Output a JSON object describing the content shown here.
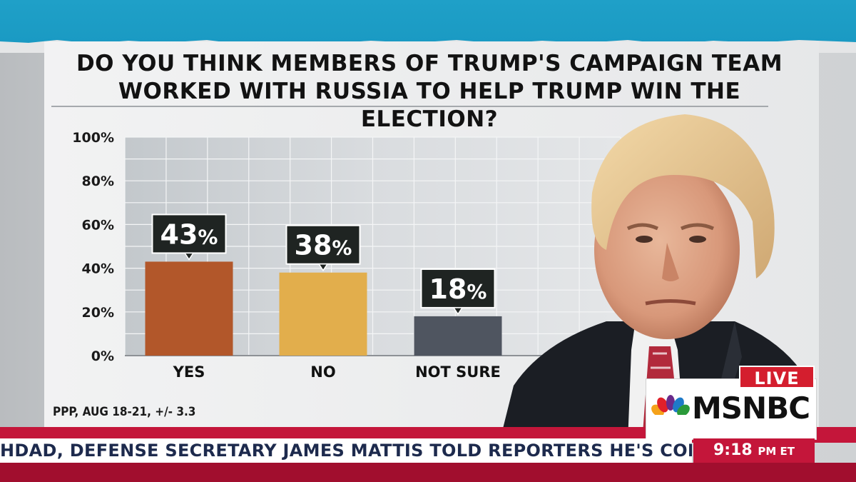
{
  "headline": {
    "line1": "DO YOU THINK MEMBERS OF TRUMP'S CAMPAIGN TEAM",
    "line2": "WORKED WITH RUSSIA TO HELP TRUMP WIN THE ELECTION?"
  },
  "source": "PPP, AUG 18-21, +/- 3.3",
  "broadcast": {
    "live_label": "LIVE",
    "network": "MSNBC",
    "ticker": "HDAD, DEFENSE SECRETARY JAMES MATTIS TOLD REPORTERS HE'S CONFIDENT",
    "time": "9:18",
    "time_suffix": "PM ET"
  },
  "colors": {
    "yes": "#b2572a",
    "no": "#e2ae4c",
    "not_sure": "#4f5560",
    "accent_red": "#c4163a",
    "accent_blue": "#1fa0c8"
  },
  "chart_data": {
    "type": "bar",
    "title": "DO YOU THINK MEMBERS OF TRUMP'S CAMPAIGN TEAM WORKED WITH RUSSIA TO HELP TRUMP WIN THE ELECTION?",
    "categories": [
      "YES",
      "NO",
      "NOT SURE"
    ],
    "values": [
      43,
      38,
      18
    ],
    "value_labels": [
      "43%",
      "38%",
      "18%"
    ],
    "colors": [
      "#b2572a",
      "#e2ae4c",
      "#4f5560"
    ],
    "ylim": [
      0,
      100
    ],
    "yticks": [
      0,
      20,
      40,
      60,
      80,
      100
    ],
    "ytick_labels": [
      "0%",
      "20%",
      "40%",
      "60%",
      "80%",
      "100%"
    ],
    "xlabel": "",
    "ylabel": "",
    "grid": true
  }
}
